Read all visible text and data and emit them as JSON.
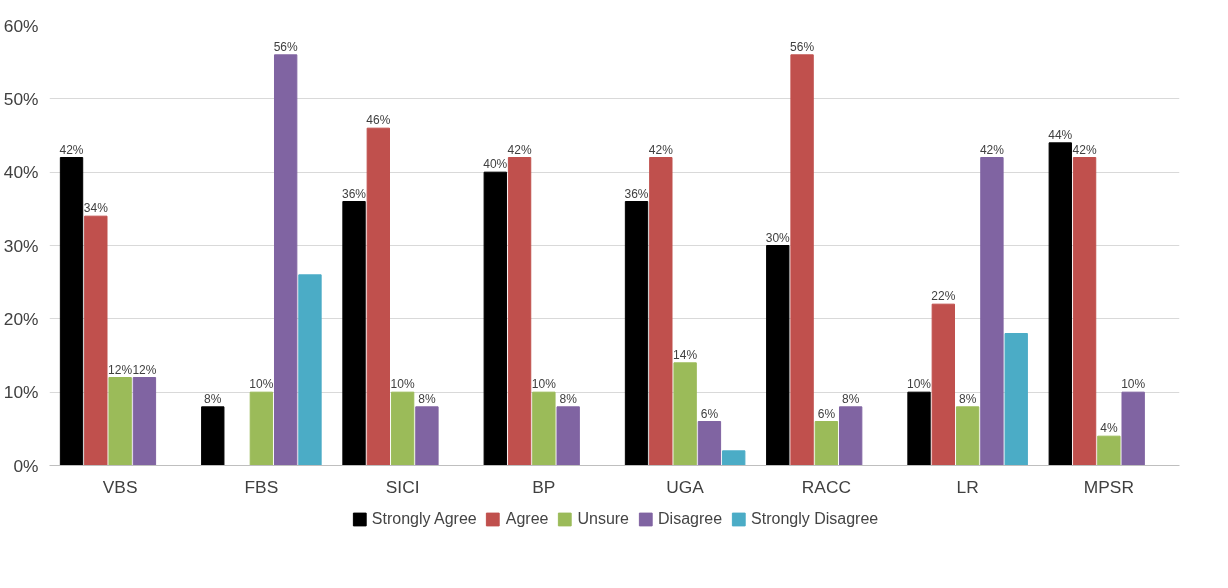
{
  "chart_data": {
    "type": "bar",
    "categories": [
      "VBS",
      "FBS",
      "SICI",
      "BP",
      "UGA",
      "RACC",
      "LR",
      "MPSR"
    ],
    "series": [
      {
        "name": "Strongly Agree",
        "color": "#000000",
        "values": [
          42,
          8,
          36,
          40,
          36,
          30,
          10,
          44
        ],
        "value_labels": [
          "42%",
          "8%",
          "36%",
          "40%",
          "36%",
          "30%",
          "10%",
          "44%"
        ]
      },
      {
        "name": "Agree",
        "color": "#c0504d",
        "values": [
          34,
          null,
          46,
          42,
          42,
          56,
          22,
          42
        ],
        "value_labels": [
          "34%",
          null,
          "46%",
          "42%",
          "42%",
          "56%",
          "22%",
          "42%"
        ]
      },
      {
        "name": "Unsure",
        "color": "#9bbb59",
        "values": [
          12,
          10,
          10,
          10,
          14,
          6,
          8,
          4
        ],
        "value_labels": [
          "12%",
          "10%",
          "10%",
          "10%",
          "14%",
          "6%",
          "8%",
          "4%"
        ]
      },
      {
        "name": "Disagree",
        "color": "#8064a2",
        "values": [
          12,
          56,
          8,
          8,
          6,
          8,
          42,
          10
        ],
        "value_labels": [
          "12%",
          "56%",
          "8%",
          "8%",
          "6%",
          "8%",
          "42%",
          "10%"
        ]
      },
      {
        "name": "Strongly Disagree",
        "color": "#4bacc6",
        "values": [
          null,
          26,
          null,
          null,
          2,
          null,
          18,
          null
        ],
        "value_labels": [
          null,
          null,
          null,
          null,
          null,
          null,
          null,
          null
        ]
      }
    ],
    "ylim": [
      0,
      60
    ],
    "yticks": [
      {
        "value": 0,
        "label": "0%"
      },
      {
        "value": 10,
        "label": "10%"
      },
      {
        "value": 20,
        "label": "20%"
      },
      {
        "value": 30,
        "label": "30%"
      },
      {
        "value": 40,
        "label": "40%"
      },
      {
        "value": 50,
        "label": "50%"
      },
      {
        "value": 60,
        "label": "60%"
      }
    ],
    "grid": "y",
    "legend": "bottom"
  }
}
